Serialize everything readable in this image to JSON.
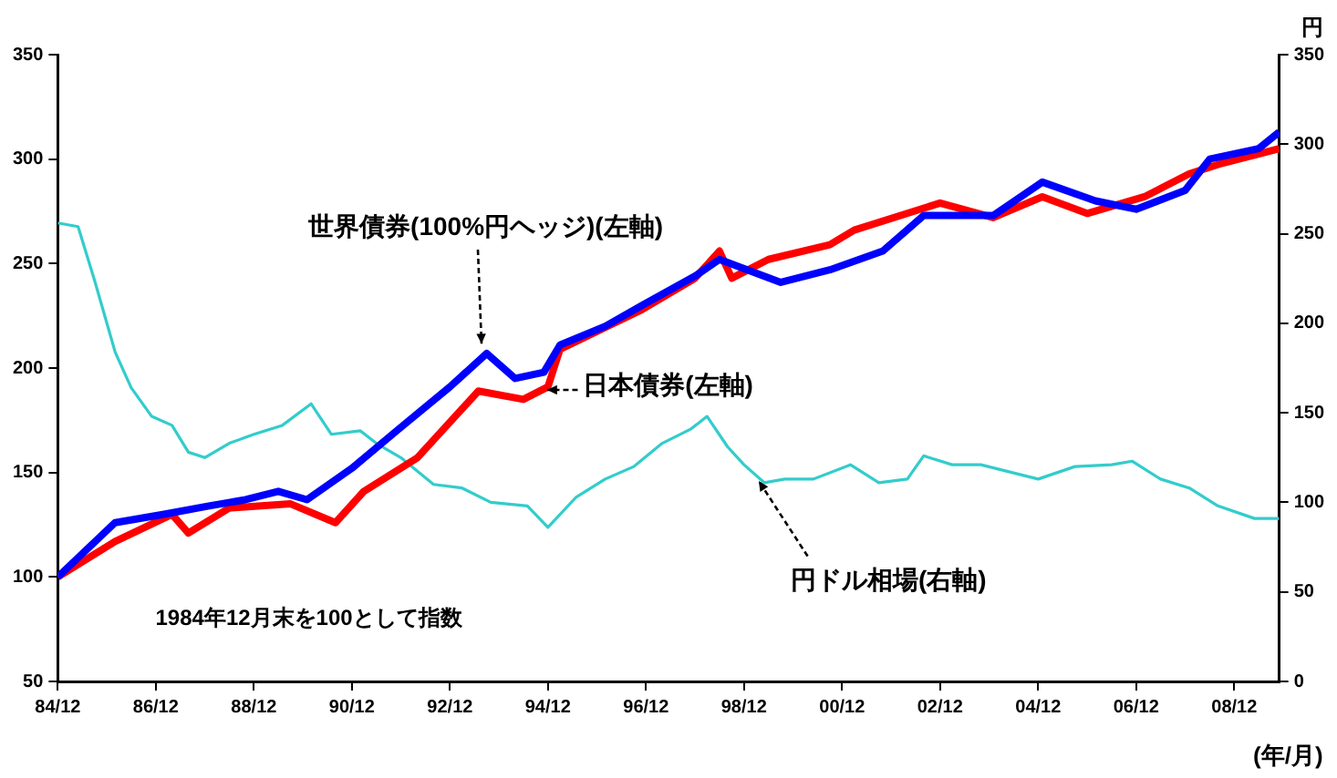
{
  "chart_data": {
    "type": "line",
    "xlabel": "(年/月)",
    "y2label": "円",
    "annotations": [
      "1984年12月末を100として指数"
    ],
    "legend": false,
    "grid": false,
    "marker": "none",
    "line_style": "solid",
    "xlim": [
      "1984-12",
      "2009-11"
    ],
    "xticks": [
      {
        "value": "1984-12",
        "label": "84/12"
      },
      {
        "value": "1986-12",
        "label": "86/12"
      },
      {
        "value": "1988-12",
        "label": "88/12"
      },
      {
        "value": "1990-12",
        "label": "90/12"
      },
      {
        "value": "1992-12",
        "label": "92/12"
      },
      {
        "value": "1994-12",
        "label": "94/12"
      },
      {
        "value": "1996-12",
        "label": "96/12"
      },
      {
        "value": "1998-12",
        "label": "98/12"
      },
      {
        "value": "2000-12",
        "label": "00/12"
      },
      {
        "value": "2002-12",
        "label": "02/12"
      },
      {
        "value": "2004-12",
        "label": "04/12"
      },
      {
        "value": "2006-12",
        "label": "06/12"
      },
      {
        "value": "2008-12",
        "label": "08/12"
      }
    ],
    "ylim": [
      50,
      350
    ],
    "yticks": [
      50,
      100,
      150,
      200,
      250,
      300,
      350
    ],
    "y2lim": [
      0,
      350
    ],
    "y2ticks": [
      0,
      50,
      100,
      150,
      200,
      250,
      300,
      350
    ],
    "series": [
      {
        "name": "世界債券(100%円ヘッジ)(左軸)",
        "color": "#0000ff",
        "x": [
          "1984-12",
          "1986-02",
          "1987-02",
          "1988-01",
          "1988-10",
          "1989-06",
          "1990-01",
          "1990-12",
          "1991-11",
          "1992-12",
          "1993-09",
          "1994-04",
          "1994-11",
          "1995-03",
          "1996-02",
          "1996-11",
          "1997-12",
          "1998-06",
          "1999-09",
          "2000-09",
          "2001-10",
          "2002-08",
          "2003-04",
          "2004-01",
          "2005-01",
          "2006-02",
          "2006-12",
          "2007-12",
          "2008-06",
          "2009-06",
          "2009-11"
        ],
        "values": [
          100,
          126,
          130,
          134,
          137,
          141,
          137,
          152,
          170,
          191,
          207,
          195,
          198,
          211,
          220,
          230,
          244,
          252,
          241,
          247,
          256,
          273,
          273,
          273,
          289,
          280,
          276,
          285,
          300,
          305,
          313
        ]
      },
      {
        "name": "日本債券(左軸)",
        "color": "#ff0000",
        "x": [
          "1984-12",
          "1986-02",
          "1987-04",
          "1987-08",
          "1988-06",
          "1989-09",
          "1990-08",
          "1991-03",
          "1992-04",
          "1993-07",
          "1994-06",
          "1994-12",
          "1995-03",
          "1996-11",
          "1997-12",
          "1998-06",
          "1998-09",
          "1999-06",
          "2000-09",
          "2001-03",
          "2002-12",
          "2004-01",
          "2005-01",
          "2005-12",
          "2007-02",
          "2008-01",
          "2008-09",
          "2009-11"
        ],
        "values": [
          100,
          117,
          130,
          121,
          133,
          135,
          126,
          141,
          157,
          189,
          185,
          191,
          209,
          228,
          243,
          256,
          243,
          252,
          259,
          266,
          279,
          272,
          282,
          274,
          282,
          293,
          298,
          305
        ]
      },
      {
        "name": "円ドル相場(右軸)",
        "color": "#33cccc",
        "axis": "y2",
        "x": [
          "1984-12",
          "1985-05",
          "1985-09",
          "1986-02",
          "1986-06",
          "1986-11",
          "1987-04",
          "1987-08",
          "1987-12",
          "1988-06",
          "1988-12",
          "1989-07",
          "1990-02",
          "1990-07",
          "1991-02",
          "1991-06",
          "1991-12",
          "1992-08",
          "1993-03",
          "1993-10",
          "1994-07",
          "1994-12",
          "1995-07",
          "1996-02",
          "1996-09",
          "1997-04",
          "1997-11",
          "1998-03",
          "1998-08",
          "1998-12",
          "1999-05",
          "1999-10",
          "2000-05",
          "2001-02",
          "2001-09",
          "2002-04",
          "2002-08",
          "2003-03",
          "2003-10",
          "2004-12",
          "2005-09",
          "2006-06",
          "2006-11",
          "2007-06",
          "2008-01",
          "2008-08",
          "2009-05",
          "2009-11"
        ],
        "values": [
          256,
          254,
          224,
          184,
          164,
          148,
          143,
          128,
          125,
          133,
          138,
          143,
          155,
          138,
          140,
          133,
          125,
          110,
          108,
          100,
          98,
          86,
          103,
          113,
          120,
          133,
          141,
          148,
          131,
          121,
          111,
          113,
          113,
          121,
          111,
          113,
          126,
          121,
          121,
          113,
          120,
          121,
          123,
          113,
          108,
          98,
          91,
          91
        ]
      }
    ]
  }
}
